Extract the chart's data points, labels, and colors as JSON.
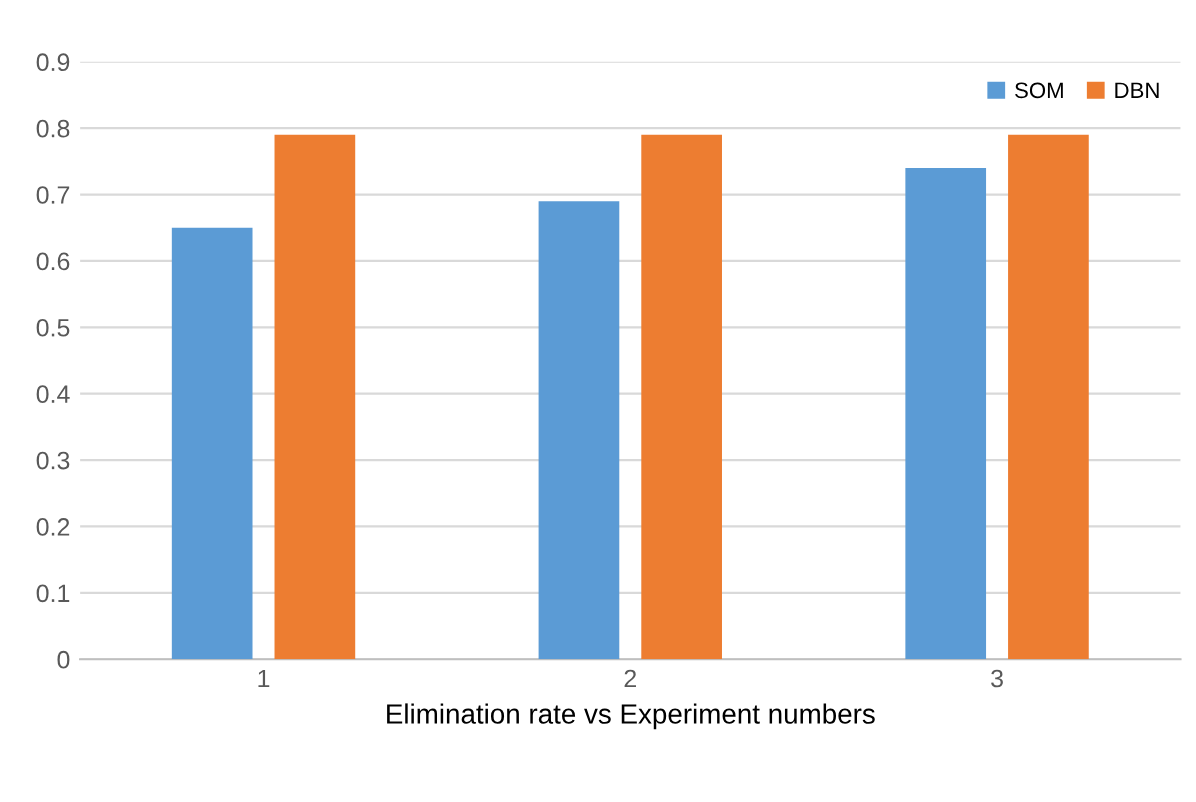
{
  "chart_data": {
    "type": "bar",
    "xlabel": "Elimination rate vs Experiment numbers",
    "categories": [
      "1",
      "2",
      "3"
    ],
    "series": [
      {
        "name": "SOM",
        "color": "#5b9bd5",
        "values": [
          0.65,
          0.69,
          0.74
        ]
      },
      {
        "name": "DBN",
        "color": "#ed7d31",
        "values": [
          0.79,
          0.79,
          0.79
        ]
      }
    ],
    "ylim": [
      0,
      0.9
    ],
    "yticks": [
      0,
      0.1,
      0.2,
      0.3,
      0.4,
      0.5,
      0.6,
      0.7,
      0.8,
      0.9
    ],
    "grid": "y",
    "legend": "top right"
  }
}
